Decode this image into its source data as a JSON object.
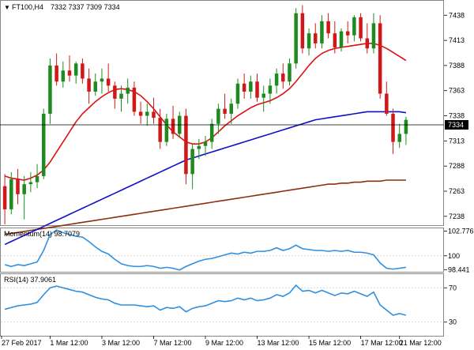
{
  "header": {
    "symbol": "FT100,H4",
    "ohlc": "7332 7337 7309 7334"
  },
  "colors": {
    "up": "#1f8a1f",
    "down": "#d01818",
    "ma_fast": "#e01010",
    "ma_mid": "#1010c8",
    "ma_slow": "#8b3010",
    "indicator": "#2f8fe0",
    "grid": "#c8c8c8",
    "badge_bg": "#000000",
    "badge_fg": "#ffffff"
  },
  "price_axis": {
    "ticks": [
      "7438",
      "7413",
      "7388",
      "7363",
      "7338",
      "7313",
      "7288",
      "7263",
      "7238"
    ],
    "current_badge": "7334"
  },
  "momentum": {
    "title": "Momentum(14) 98.7079",
    "ticks": [
      "102.7765",
      "100",
      "98.441"
    ]
  },
  "rsi": {
    "title": "RSI(14) 37.9061",
    "ticks": [
      "70",
      "30"
    ]
  },
  "time_axis": {
    "labels": [
      "27 Feb 2017",
      "1 Mar 12:00",
      "3 Mar 12:00",
      "7 Mar 12:00",
      "9 Mar 12:00",
      "13 Mar 12:00",
      "15 Mar 12:00",
      "17 Mar 12:00",
      "21 Mar 12:00"
    ]
  },
  "chart_data": {
    "type": "candlestick",
    "ylim": [
      7230,
      7450
    ],
    "candles": [
      [
        7268,
        7280,
        7230,
        7245
      ],
      [
        7245,
        7282,
        7240,
        7275
      ],
      [
        7275,
        7285,
        7250,
        7260
      ],
      [
        7260,
        7278,
        7235,
        7270
      ],
      [
        7270,
        7282,
        7262,
        7272
      ],
      [
        7272,
        7290,
        7266,
        7278
      ],
      [
        7278,
        7345,
        7275,
        7340
      ],
      [
        7340,
        7395,
        7330,
        7388
      ],
      [
        7388,
        7400,
        7368,
        7372
      ],
      [
        7372,
        7392,
        7366,
        7383
      ],
      [
        7383,
        7398,
        7372,
        7378
      ],
      [
        7378,
        7392,
        7370,
        7390
      ],
      [
        7390,
        7395,
        7370,
        7375
      ],
      [
        7375,
        7385,
        7350,
        7362
      ],
      [
        7362,
        7380,
        7358,
        7372
      ],
      [
        7372,
        7385,
        7360,
        7375
      ],
      [
        7375,
        7390,
        7362,
        7368
      ],
      [
        7368,
        7372,
        7345,
        7355
      ],
      [
        7355,
        7368,
        7342,
        7360
      ],
      [
        7360,
        7375,
        7350,
        7366
      ],
      [
        7366,
        7372,
        7338,
        7342
      ],
      [
        7342,
        7352,
        7330,
        7338
      ],
      [
        7338,
        7350,
        7328,
        7342
      ],
      [
        7342,
        7356,
        7330,
        7336
      ],
      [
        7336,
        7345,
        7305,
        7312
      ],
      [
        7312,
        7340,
        7308,
        7335
      ],
      [
        7335,
        7348,
        7315,
        7320
      ],
      [
        7320,
        7342,
        7316,
        7338
      ],
      [
        7338,
        7345,
        7270,
        7280
      ],
      [
        7280,
        7310,
        7265,
        7305
      ],
      [
        7305,
        7315,
        7295,
        7308
      ],
      [
        7308,
        7318,
        7298,
        7312
      ],
      [
        7312,
        7335,
        7305,
        7330
      ],
      [
        7330,
        7350,
        7320,
        7345
      ],
      [
        7345,
        7360,
        7335,
        7340
      ],
      [
        7340,
        7355,
        7330,
        7350
      ],
      [
        7350,
        7375,
        7345,
        7370
      ],
      [
        7370,
        7380,
        7355,
        7362
      ],
      [
        7362,
        7378,
        7355,
        7372
      ],
      [
        7372,
        7380,
        7352,
        7356
      ],
      [
        7356,
        7368,
        7342,
        7360
      ],
      [
        7360,
        7375,
        7350,
        7368
      ],
      [
        7368,
        7385,
        7360,
        7380
      ],
      [
        7380,
        7390,
        7365,
        7372
      ],
      [
        7372,
        7395,
        7368,
        7390
      ],
      [
        7390,
        7445,
        7385,
        7440
      ],
      [
        7440,
        7448,
        7400,
        7405
      ],
      [
        7405,
        7425,
        7398,
        7420
      ],
      [
        7420,
        7430,
        7405,
        7410
      ],
      [
        7410,
        7438,
        7405,
        7432
      ],
      [
        7432,
        7440,
        7415,
        7420
      ],
      [
        7420,
        7432,
        7400,
        7406
      ],
      [
        7406,
        7425,
        7402,
        7422
      ],
      [
        7422,
        7432,
        7410,
        7418
      ],
      [
        7418,
        7438,
        7412,
        7436
      ],
      [
        7436,
        7440,
        7412,
        7415
      ],
      [
        7415,
        7430,
        7400,
        7405
      ],
      [
        7405,
        7440,
        7400,
        7430
      ],
      [
        7430,
        7438,
        7355,
        7360
      ],
      [
        7360,
        7372,
        7338,
        7340
      ],
      [
        7340,
        7345,
        7300,
        7312
      ],
      [
        7312,
        7330,
        7306,
        7320
      ],
      [
        7320,
        7337,
        7309,
        7334
      ]
    ],
    "ma_fast": [
      7278,
      7276,
      7275,
      7274,
      7276,
      7279,
      7284,
      7292,
      7302,
      7312,
      7322,
      7332,
      7340,
      7346,
      7352,
      7357,
      7361,
      7364,
      7365,
      7364,
      7362,
      7358,
      7352,
      7345,
      7337,
      7329,
      7322,
      7317,
      7312,
      7310,
      7310,
      7312,
      7316,
      7322,
      7328,
      7333,
      7338,
      7342,
      7346,
      7349,
      7351,
      7353,
      7356,
      7360,
      7365,
      7372,
      7380,
      7388,
      7395,
      7400,
      7403,
      7405,
      7406,
      7407,
      7408,
      7409,
      7410,
      7410,
      7408,
      7405,
      7401,
      7397,
      7393
    ],
    "ma_mid": [
      7210,
      7213,
      7216,
      7219,
      7222,
      7225,
      7228,
      7231,
      7234,
      7237,
      7240,
      7243,
      7246,
      7249,
      7252,
      7255,
      7258,
      7261,
      7264,
      7267,
      7270,
      7273,
      7276,
      7279,
      7282,
      7285,
      7288,
      7291,
      7294,
      7296,
      7298,
      7300,
      7302,
      7304,
      7306,
      7308,
      7310,
      7312,
      7314,
      7316,
      7318,
      7320,
      7322,
      7324,
      7326,
      7328,
      7330,
      7332,
      7334,
      7335,
      7336,
      7337,
      7338,
      7339,
      7340,
      7341,
      7342,
      7342,
      7342,
      7342,
      7342,
      7342,
      7341
    ],
    "ma_slow": [
      7220,
      7221,
      7222,
      7223,
      7224,
      7225,
      7226,
      7227,
      7228,
      7229,
      7230,
      7231,
      7232,
      7233,
      7234,
      7235,
      7236,
      7237,
      7238,
      7239,
      7240,
      7241,
      7242,
      7243,
      7244,
      7245,
      7246,
      7247,
      7248,
      7249,
      7250,
      7251,
      7252,
      7253,
      7254,
      7255,
      7256,
      7257,
      7258,
      7259,
      7260,
      7261,
      7262,
      7263,
      7264,
      7265,
      7266,
      7267,
      7268,
      7269,
      7270,
      7270,
      7271,
      7271,
      7272,
      7272,
      7273,
      7273,
      7273,
      7274,
      7274,
      7274,
      7274
    ],
    "momentum_values": [
      99.0,
      98.8,
      99.0,
      98.9,
      99.1,
      99.3,
      100.6,
      102.4,
      102.9,
      102.6,
      102.4,
      102.2,
      102.1,
      101.6,
      101.0,
      100.5,
      100.2,
      99.6,
      99.1,
      98.9,
      98.8,
      98.8,
      98.9,
      98.8,
      98.6,
      98.7,
      98.6,
      98.4,
      98.8,
      99.1,
      99.4,
      99.6,
      99.7,
      99.9,
      100.1,
      100.3,
      100.2,
      100.4,
      100.3,
      100.5,
      100.5,
      100.6,
      100.9,
      100.6,
      100.8,
      101.2,
      100.8,
      100.7,
      100.6,
      100.6,
      100.5,
      100.6,
      100.5,
      100.6,
      100.4,
      100.4,
      100.3,
      100.1,
      99.2,
      98.6,
      98.5,
      98.6,
      98.7
    ],
    "momentum_range": [
      98.2,
      103.0
    ],
    "rsi_values": [
      45,
      47,
      49,
      50,
      51,
      53,
      62,
      70,
      72,
      70,
      68,
      66,
      65,
      62,
      59,
      57,
      56,
      52,
      50,
      50,
      50,
      49,
      48,
      49,
      44,
      47,
      46,
      48,
      42,
      46,
      48,
      49,
      52,
      55,
      54,
      55,
      58,
      56,
      58,
      55,
      56,
      58,
      62,
      60,
      64,
      73,
      66,
      67,
      64,
      67,
      64,
      61,
      64,
      63,
      66,
      63,
      60,
      65,
      50,
      44,
      38,
      40,
      38
    ],
    "rsi_range": [
      15,
      85
    ]
  }
}
